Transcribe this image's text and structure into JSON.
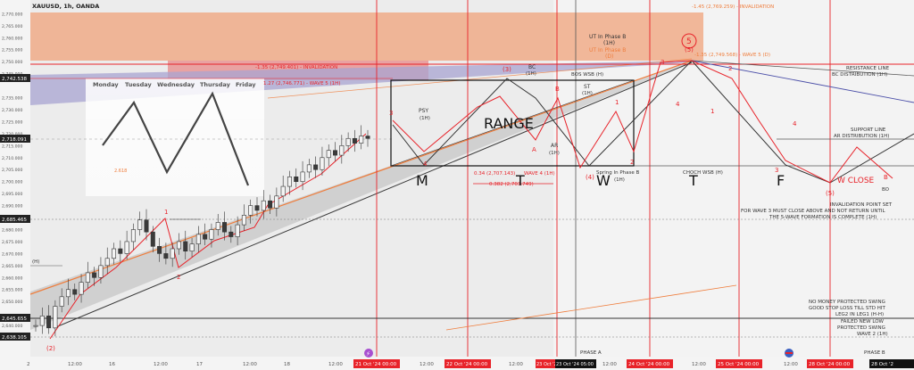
{
  "header": {
    "symbol": "XAUUSD, 1h, OANDA"
  },
  "colors": {
    "bg": "#e9e9e9",
    "candle_up": "#3a3a3a",
    "candle_down": "#3a3a3a",
    "red": "#e8232a",
    "orange": "#ef7d3c",
    "purple": "#8c86c2"
  },
  "price_axis": {
    "ticks": [
      "2,770.000",
      "2,765.000",
      "2,760.000",
      "2,755.000",
      "2,750.000",
      "2,745.000",
      "2,735.000",
      "2,730.000",
      "2,725.000",
      "2,720.000",
      "2,715.000",
      "2,710.000",
      "2,705.000",
      "2,700.000",
      "2,695.000",
      "2,690.000",
      "2,680.000",
      "2,675.000",
      "2,670.000",
      "2,665.000",
      "2,660.000",
      "2,655.000",
      "2,650.000",
      "2,640.000",
      "2,635.000"
    ],
    "badges": [
      "2,742.538",
      "2,718.091",
      "2,685.465",
      "2,645.655",
      "2,638.105"
    ]
  },
  "time_axis": {
    "labels": [
      "2",
      "12:00",
      "16",
      "12:00",
      "17",
      "12:00",
      "18",
      "12:00",
      "12:00",
      "12:00",
      "12:00",
      "12:00",
      "12:00",
      "12:00"
    ],
    "red_badges": [
      "21 Oct '24  00:00",
      "22 Oct '24  00:00",
      "23 Oct '24",
      "24 Oct '24  00:00",
      "25 Oct '24  00:00",
      "28 Oct '24  00:00",
      "28 Oct '2"
    ],
    "dark_badge": "23 Oct '24  05:00"
  },
  "weekdays": [
    "Monday",
    "Tuesday",
    "Wednesday",
    "Thursday",
    "Friday"
  ],
  "annotations": {
    "invalidation_top": "-1.45 (2,769.259) - INVALIDATION",
    "wave5_d": "-1.35 (2,749.568) - WAVE 5 (D)",
    "invalidation_mid": "-1.35 (2,749.401) - INVALIDATION",
    "wave5_1h": "1.27 (2,746.771) - WAVE 5 (1H)",
    "ut_black": "UT In Phase B",
    "ut_black_tf": "(1H)",
    "ut_orange": "UT In Phase B",
    "ut_orange_tf": "(D)",
    "bc": "BC",
    "bc_tf": "(1H)",
    "bos": "BOS WSB (H)",
    "st": "ST",
    "st_tf": "(1H)",
    "psy": "PSY",
    "psy_tf": "(1H)",
    "range": "RANGE",
    "ar": "AR",
    "ar_tf": "(1H)",
    "fib_034": "0.34 (2,707.143)",
    "wave4_1h": "WAVE 4 (1H)",
    "fib_0382": "0.382 (2,703.749)",
    "spring": "Spring In Phase B",
    "spring_tf": "(1H)",
    "choch": "CHOCH WSB (H)",
    "resistance": "RESISTANCE LINE",
    "bc_dist": "BC DISTRIBUTION (1H)",
    "support": "SUPPORT LINE",
    "ar_dist": "AR DISTRIBUTION (1H)",
    "w_close": "W CLOSE",
    "bo": "BO",
    "invalidation_point": "INVALIDATION POINT SET",
    "inval_line2": "FOR WAVE 3 MUST CLOSE ABOVE AND NOT RETURN UNTIL",
    "inval_line3": "THE 5-WAVE FORMATION IS COMPLETE (1H)",
    "no_money": "NO MONEY PROTECTED SWING",
    "good_stop": "GOOD STOP LOSS TILL STD HIT",
    "leg2": "LEG2 IN LEG1 (H-H)",
    "failed_low": "FAILED NEW LOW",
    "protected_swing": "PROTECTED SWING",
    "wave2_1h": "WAVE 2 (1H)",
    "phase_a": "PHASE A",
    "phase_b": "PHASE B",
    "h_label": "(H)",
    "small_label": "2.618"
  },
  "week_letters": [
    "M",
    "T",
    "W",
    "T",
    "F"
  ],
  "wave_labels": {
    "w1": "1",
    "w2": "2",
    "w_2": "(2)",
    "w3": "3",
    "w4": "4",
    "w_3": "(3)",
    "wA": "A",
    "wB": "B",
    "wB2": "B",
    "w_4": "(4)",
    "w_5": "(5)",
    "w_5b": "5",
    "w_5c": "(5)",
    "p1": "1",
    "p2": "2",
    "p3": "3",
    "p4": "4",
    "q1": "1",
    "q2": "2",
    "q3": "3",
    "q4": "4",
    "q_5": "(5)"
  },
  "chart_data": {
    "type": "candlestick",
    "symbol": "XAUUSD",
    "timeframe": "1h",
    "ylim": [
      2630,
      2772
    ],
    "close_path": [
      2640,
      2644,
      2639,
      2648,
      2652,
      2655,
      2653,
      2658,
      2662,
      2660,
      2665,
      2668,
      2672,
      2670,
      2675,
      2680,
      2684,
      2679,
      2673,
      2670,
      2668,
      2672,
      2675,
      2671,
      2674,
      2678,
      2676,
      2680,
      2683,
      2679,
      2677,
      2682,
      2686,
      2690,
      2688,
      2692,
      2689,
      2694,
      2698,
      2702,
      2700,
      2704,
      2707,
      2705,
      2710,
      2713,
      2711,
      2715,
      2718,
      2716,
      2719,
      2718
    ]
  }
}
